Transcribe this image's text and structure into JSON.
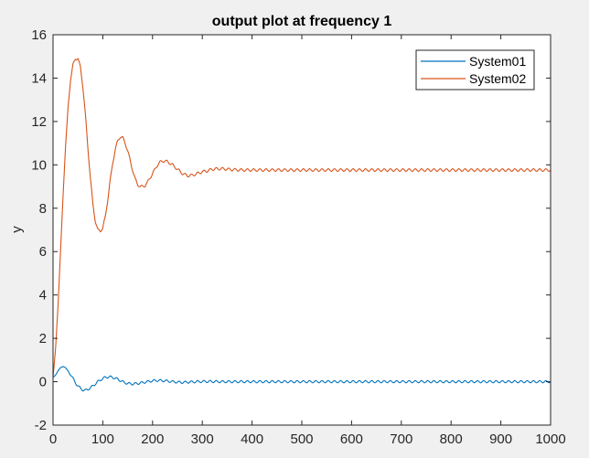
{
  "chart_data": {
    "type": "line",
    "title": "output plot at frequency 1",
    "xlabel": "",
    "ylabel": "y",
    "xlim": [
      0,
      1000
    ],
    "ylim": [
      -2,
      16
    ],
    "xticks": [
      0,
      100,
      200,
      300,
      400,
      500,
      600,
      700,
      800,
      900,
      1000
    ],
    "yticks": [
      -2,
      0,
      2,
      4,
      6,
      8,
      10,
      12,
      14,
      16
    ],
    "grid": false,
    "legend_placement": "top-right",
    "series": [
      {
        "name": "System01",
        "color": "#0072BD",
        "x": [
          0,
          5,
          10,
          15,
          20,
          25,
          30,
          35,
          40,
          45,
          50,
          55,
          60,
          65,
          70,
          75,
          80,
          85,
          90,
          95,
          100,
          105,
          110,
          115,
          120,
          125,
          130,
          135,
          140,
          145,
          150,
          160,
          170,
          180,
          190,
          200,
          210,
          220,
          230,
          240,
          250,
          260,
          270,
          280,
          290,
          300,
          320,
          340,
          360,
          380,
          400,
          450,
          500,
          550,
          600,
          650,
          700,
          750,
          800,
          850,
          900,
          950,
          1000
        ],
        "y": [
          0.2,
          0.3,
          0.5,
          0.65,
          0.7,
          0.65,
          0.5,
          0.35,
          0.15,
          -0.05,
          -0.2,
          -0.3,
          -0.38,
          -0.4,
          -0.35,
          -0.28,
          -0.2,
          -0.1,
          0.0,
          0.08,
          0.15,
          0.2,
          0.22,
          0.22,
          0.2,
          0.16,
          0.12,
          0.06,
          0.0,
          -0.05,
          -0.08,
          -0.1,
          -0.08,
          -0.04,
          0.0,
          0.04,
          0.06,
          0.05,
          0.03,
          0.0,
          -0.02,
          -0.03,
          -0.02,
          -0.01,
          0.0,
          0.01,
          0.01,
          0.0,
          0.0,
          0.0,
          0.0,
          0.0,
          0.0,
          0.0,
          0.0,
          0.0,
          0.0,
          0.0,
          0.0,
          0.0,
          0.0,
          0.0,
          0.0
        ],
        "ripple": 0.05
      },
      {
        "name": "System02",
        "color": "#D95319",
        "x": [
          0,
          5,
          10,
          15,
          20,
          25,
          30,
          35,
          40,
          45,
          50,
          55,
          60,
          65,
          70,
          75,
          80,
          85,
          90,
          95,
          100,
          105,
          110,
          115,
          120,
          125,
          130,
          135,
          140,
          145,
          150,
          155,
          160,
          165,
          170,
          175,
          180,
          185,
          190,
          195,
          200,
          205,
          210,
          215,
          220,
          230,
          240,
          250,
          260,
          270,
          280,
          290,
          300,
          310,
          320,
          330,
          340,
          350,
          360,
          380,
          400,
          450,
          500,
          550,
          600,
          650,
          700,
          750,
          800,
          850,
          900,
          950,
          1000
        ],
        "y": [
          0.2,
          1.5,
          3.5,
          6.0,
          8.5,
          10.8,
          12.6,
          13.9,
          14.6,
          14.9,
          14.9,
          14.5,
          13.6,
          12.3,
          10.8,
          9.4,
          8.2,
          7.4,
          7.0,
          6.95,
          7.1,
          7.6,
          8.4,
          9.3,
          10.1,
          10.7,
          11.1,
          11.3,
          11.25,
          11.0,
          10.65,
          10.2,
          9.75,
          9.35,
          9.1,
          9.0,
          9.0,
          9.05,
          9.2,
          9.4,
          9.6,
          9.8,
          10.0,
          10.12,
          10.18,
          10.15,
          10.0,
          9.8,
          9.6,
          9.5,
          9.52,
          9.6,
          9.68,
          9.72,
          9.8,
          9.82,
          9.82,
          9.8,
          9.78,
          9.76,
          9.76,
          9.76,
          9.76,
          9.76,
          9.76,
          9.76,
          9.76,
          9.76,
          9.76,
          9.76,
          9.76,
          9.76,
          9.76
        ],
        "ripple": 0.06
      }
    ]
  }
}
